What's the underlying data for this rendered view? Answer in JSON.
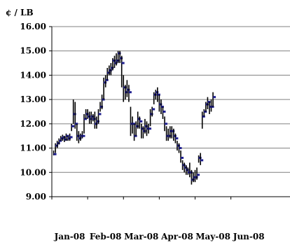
{
  "chart_data": {
    "type": "ohlc",
    "ylabel": "¢ / LB",
    "ylim": [
      9.0,
      16.0
    ],
    "yticks": [
      9.0,
      10.0,
      11.0,
      12.0,
      13.0,
      14.0,
      15.0,
      16.0
    ],
    "ytick_labels": [
      "9.00",
      "10.00",
      "11.00",
      "12.00",
      "13.00",
      "14.00",
      "15.00",
      "16.00"
    ],
    "xlim": [
      0,
      6.65
    ],
    "xtick_positions": [
      0,
      1,
      2,
      3,
      4,
      5
    ],
    "xtick_labels": [
      "Jan-08",
      "Feb-08",
      "Mar-08",
      "Apr-08",
      "May-08",
      "Jun-08"
    ],
    "grid": "horizontal",
    "colors": {
      "bar": "#000000",
      "close_tick": "#1f1f8f",
      "grid": "#808080"
    },
    "bars": [
      [
        0.05,
        10.9,
        10.7,
        10.75
      ],
      [
        0.1,
        11.2,
        10.8,
        11.1
      ],
      [
        0.15,
        11.3,
        11.0,
        11.2
      ],
      [
        0.2,
        11.4,
        11.15,
        11.3
      ],
      [
        0.25,
        11.5,
        11.3,
        11.4
      ],
      [
        0.3,
        11.55,
        11.3,
        11.45
      ],
      [
        0.35,
        11.5,
        11.25,
        11.35
      ],
      [
        0.4,
        11.6,
        11.3,
        11.5
      ],
      [
        0.45,
        11.5,
        11.3,
        11.4
      ],
      [
        0.5,
        11.6,
        11.3,
        11.45
      ],
      [
        0.55,
        12.0,
        11.7,
        11.9
      ],
      [
        0.6,
        13.0,
        12.0,
        12.4
      ],
      [
        0.65,
        12.9,
        11.8,
        12.0
      ],
      [
        0.7,
        12.0,
        11.3,
        11.5
      ],
      [
        0.75,
        11.7,
        11.2,
        11.4
      ],
      [
        0.8,
        11.6,
        11.3,
        11.5
      ],
      [
        0.85,
        11.7,
        11.4,
        11.5
      ],
      [
        0.9,
        12.4,
        11.6,
        12.2
      ],
      [
        0.95,
        12.6,
        12.2,
        12.4
      ],
      [
        1.0,
        12.6,
        12.2,
        12.3
      ],
      [
        1.05,
        12.5,
        12.0,
        12.2
      ],
      [
        1.1,
        12.5,
        12.0,
        12.3
      ],
      [
        1.15,
        12.4,
        12.1,
        12.2
      ],
      [
        1.2,
        12.5,
        11.8,
        12.0
      ],
      [
        1.25,
        12.3,
        11.8,
        12.1
      ],
      [
        1.3,
        12.6,
        12.0,
        12.4
      ],
      [
        1.35,
        12.9,
        12.5,
        12.7
      ],
      [
        1.4,
        13.2,
        12.6,
        13.0
      ],
      [
        1.45,
        13.9,
        13.0,
        13.7
      ],
      [
        1.5,
        14.0,
        13.5,
        13.8
      ],
      [
        1.55,
        14.3,
        13.8,
        14.1
      ],
      [
        1.6,
        14.4,
        14.0,
        14.2
      ],
      [
        1.65,
        14.5,
        14.0,
        14.3
      ],
      [
        1.7,
        14.7,
        14.2,
        14.6
      ],
      [
        1.75,
        14.8,
        14.3,
        14.5
      ],
      [
        1.8,
        14.9,
        14.4,
        14.6
      ],
      [
        1.85,
        15.0,
        14.5,
        14.9
      ],
      [
        1.9,
        15.0,
        14.5,
        14.7
      ],
      [
        1.95,
        14.8,
        13.5,
        14.5
      ],
      [
        2.0,
        14.0,
        12.9,
        13.5
      ],
      [
        2.05,
        13.6,
        13.0,
        13.3
      ],
      [
        2.1,
        13.8,
        13.1,
        13.4
      ],
      [
        2.15,
        13.6,
        12.9,
        13.3
      ],
      [
        2.2,
        12.7,
        11.5,
        12.0
      ],
      [
        2.25,
        12.3,
        11.6,
        12.0
      ],
      [
        2.3,
        12.0,
        11.3,
        11.5
      ],
      [
        2.35,
        12.1,
        11.5,
        11.9
      ],
      [
        2.4,
        12.5,
        11.8,
        12.2
      ],
      [
        2.45,
        12.3,
        11.8,
        12.1
      ],
      [
        2.5,
        12.0,
        11.4,
        11.8
      ],
      [
        2.55,
        11.9,
        11.4,
        11.7
      ],
      [
        2.6,
        12.2,
        11.6,
        11.9
      ],
      [
        2.65,
        12.1,
        11.5,
        11.8
      ],
      [
        2.7,
        12.0,
        11.6,
        11.8
      ],
      [
        2.75,
        12.6,
        11.9,
        12.4
      ],
      [
        2.8,
        12.7,
        12.3,
        12.6
      ],
      [
        2.85,
        13.3,
        12.8,
        13.2
      ],
      [
        2.9,
        13.4,
        13.0,
        13.3
      ],
      [
        2.95,
        13.5,
        12.9,
        13.2
      ],
      [
        3.0,
        13.2,
        12.5,
        12.8
      ],
      [
        3.05,
        13.0,
        12.4,
        12.7
      ],
      [
        3.1,
        12.7,
        12.2,
        12.5
      ],
      [
        3.15,
        12.3,
        11.7,
        12.0
      ],
      [
        3.2,
        11.9,
        11.3,
        11.5
      ],
      [
        3.25,
        11.8,
        11.3,
        11.5
      ],
      [
        3.3,
        11.9,
        11.4,
        11.7
      ],
      [
        3.35,
        11.9,
        11.4,
        11.7
      ],
      [
        3.4,
        11.8,
        11.3,
        11.5
      ],
      [
        3.45,
        11.6,
        11.2,
        11.4
      ],
      [
        3.5,
        11.3,
        10.9,
        11.1
      ],
      [
        3.55,
        11.2,
        10.8,
        11.0
      ],
      [
        3.6,
        10.9,
        10.4,
        10.6
      ],
      [
        3.65,
        10.5,
        10.1,
        10.3
      ],
      [
        3.7,
        10.4,
        10.0,
        10.2
      ],
      [
        3.75,
        10.3,
        9.9,
        10.1
      ],
      [
        3.8,
        10.2,
        9.9,
        10.0
      ],
      [
        3.85,
        10.4,
        9.8,
        10.0
      ],
      [
        3.9,
        10.1,
        9.5,
        9.7
      ],
      [
        3.95,
        10.0,
        9.6,
        9.8
      ],
      [
        4.0,
        10.1,
        9.6,
        9.8
      ],
      [
        4.05,
        10.2,
        9.7,
        9.9
      ],
      [
        4.1,
        10.7,
        10.4,
        10.6
      ],
      [
        4.15,
        10.8,
        10.3,
        10.5
      ],
      [
        4.2,
        12.5,
        11.8,
        12.3
      ],
      [
        4.25,
        12.6,
        12.3,
        12.5
      ],
      [
        4.3,
        12.9,
        12.5,
        12.8
      ],
      [
        4.35,
        13.1,
        12.6,
        12.9
      ],
      [
        4.4,
        12.9,
        12.4,
        12.7
      ],
      [
        4.45,
        13.0,
        12.5,
        12.7
      ],
      [
        4.5,
        13.3,
        12.7,
        13.1
      ]
    ]
  }
}
